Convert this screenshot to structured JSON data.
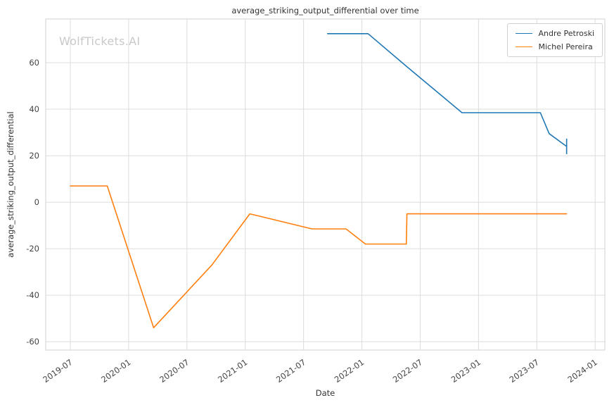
{
  "watermark": "WolfTickets.AI",
  "chart_data": {
    "type": "line",
    "title": "average_striking_output_differential over time",
    "xlabel": "Date",
    "ylabel": "average_striking_output_differential",
    "grid": true,
    "legend_position": "upper right",
    "x_ticks": [
      "2019-07",
      "2020-01",
      "2020-07",
      "2021-01",
      "2021-07",
      "2022-01",
      "2022-07",
      "2023-01",
      "2023-07",
      "2024-01"
    ],
    "y_ticks": [
      -60,
      -40,
      -20,
      0,
      20,
      40,
      60
    ],
    "xlim": [
      "2019-04-15",
      "2024-02-01"
    ],
    "ylim": [
      -63.6,
      78.8
    ],
    "series": [
      {
        "name": "Andre Petroski",
        "color": "#1f77b4",
        "end_marker": "vertical-tick",
        "points": [
          [
            "2021-09-15",
            72.5
          ],
          [
            "2022-01-20",
            72.5
          ],
          [
            "2022-05-18",
            58.5
          ],
          [
            "2022-11-10",
            38.5
          ],
          [
            "2023-07-12",
            38.5
          ],
          [
            "2023-08-09",
            29.5
          ],
          [
            "2023-10-03",
            24
          ]
        ]
      },
      {
        "name": "Michel Pereira",
        "color": "#ff7f0e",
        "points": [
          [
            "2019-07-01",
            7
          ],
          [
            "2019-10-25",
            7
          ],
          [
            "2020-03-18",
            -54
          ],
          [
            "2020-09-18",
            -27
          ],
          [
            "2021-01-15",
            -5
          ],
          [
            "2021-07-27",
            -11.5
          ],
          [
            "2021-11-12",
            -11.5
          ],
          [
            "2022-01-12",
            -18
          ],
          [
            "2022-05-18",
            -18
          ],
          [
            "2022-05-20",
            -5
          ],
          [
            "2023-10-03",
            -5
          ]
        ]
      }
    ]
  }
}
